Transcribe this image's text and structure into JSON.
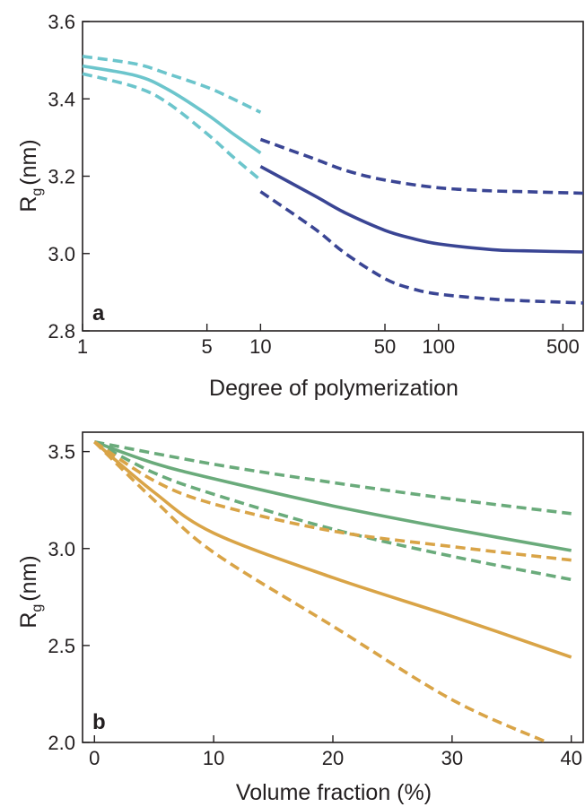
{
  "chart_data": [
    {
      "panel_label": "a",
      "type": "line",
      "xlabel": "Degree of polymerization",
      "ylabel": "R",
      "ylabel_sub": "g",
      "ylabel_unit": "(nm)",
      "xscale": "log",
      "xlim": [
        1,
        650
      ],
      "ylim": [
        2.8,
        3.6
      ],
      "x_ticks": [
        1,
        5,
        10,
        50,
        100,
        500
      ],
      "x_tick_labels": [
        "1",
        "5",
        "10",
        "50",
        "100",
        "500"
      ],
      "y_ticks": [
        2.8,
        3.0,
        3.2,
        3.4,
        3.6
      ],
      "y_tick_labels": [
        "2.8",
        "3.0",
        "3.2",
        "3.4",
        "3.6"
      ],
      "grid": false,
      "series": [
        {
          "color": "#6cc5cc",
          "style": "solid",
          "x": [
            1,
            2,
            3,
            5,
            7,
            10
          ],
          "y": [
            3.485,
            3.46,
            3.425,
            3.36,
            3.31,
            3.26
          ]
        },
        {
          "color": "#6cc5cc",
          "style": "dashed",
          "x": [
            1,
            2,
            3,
            5,
            7,
            10
          ],
          "y": [
            3.51,
            3.49,
            3.465,
            3.43,
            3.4,
            3.365
          ]
        },
        {
          "color": "#6cc5cc",
          "style": "dashed",
          "x": [
            1,
            2,
            3,
            5,
            7,
            10
          ],
          "y": [
            3.465,
            3.43,
            3.39,
            3.31,
            3.25,
            3.19
          ]
        },
        {
          "color": "#3a4594",
          "style": "solid",
          "x": [
            10,
            20,
            30,
            50,
            70,
            100,
            200,
            300,
            650
          ],
          "y": [
            3.225,
            3.15,
            3.105,
            3.06,
            3.04,
            3.025,
            3.01,
            3.007,
            3.004
          ]
        },
        {
          "color": "#3a4594",
          "style": "dashed",
          "x": [
            10,
            20,
            30,
            50,
            100,
            200,
            300,
            650
          ],
          "y": [
            3.295,
            3.245,
            3.215,
            3.19,
            3.17,
            3.162,
            3.16,
            3.156
          ]
        },
        {
          "color": "#3a4594",
          "style": "dashed",
          "x": [
            10,
            20,
            30,
            50,
            70,
            100,
            200,
            300,
            650
          ],
          "y": [
            3.16,
            3.065,
            3.0,
            2.935,
            2.91,
            2.895,
            2.882,
            2.878,
            2.872
          ]
        }
      ]
    },
    {
      "panel_label": "b",
      "type": "line",
      "xlabel": "Volume fraction (%)",
      "ylabel": "R",
      "ylabel_sub": "g",
      "ylabel_unit": "(nm)",
      "xlim": [
        -1,
        41
      ],
      "ylim": [
        2.0,
        3.6
      ],
      "x_ticks": [
        0,
        10,
        20,
        30,
        40
      ],
      "x_tick_labels": [
        "0",
        "10",
        "20",
        "30",
        "40"
      ],
      "y_ticks": [
        2.0,
        2.5,
        3.0,
        3.5
      ],
      "y_tick_labels": [
        "2.0",
        "2.5",
        "3.0",
        "3.5"
      ],
      "grid": false,
      "series": [
        {
          "color": "#6aab7b",
          "style": "solid",
          "x": [
            0,
            5,
            10,
            20,
            30,
            40
          ],
          "y": [
            3.55,
            3.44,
            3.36,
            3.22,
            3.1,
            2.99
          ]
        },
        {
          "color": "#6aab7b",
          "style": "dashed",
          "x": [
            0,
            10,
            20,
            30,
            40
          ],
          "y": [
            3.55,
            3.435,
            3.34,
            3.255,
            3.18
          ]
        },
        {
          "color": "#6aab7b",
          "style": "dashed",
          "x": [
            0,
            5,
            10,
            20,
            30,
            40
          ],
          "y": [
            3.55,
            3.39,
            3.28,
            3.1,
            2.96,
            2.84
          ]
        },
        {
          "color": "#d9a447",
          "style": "solid",
          "x": [
            0,
            5,
            10,
            20,
            30,
            40
          ],
          "y": [
            3.55,
            3.29,
            3.08,
            2.85,
            2.65,
            2.44
          ]
        },
        {
          "color": "#d9a447",
          "style": "dashed",
          "x": [
            0,
            5,
            10,
            20,
            30,
            40
          ],
          "y": [
            3.55,
            3.35,
            3.23,
            3.09,
            3.01,
            2.94
          ]
        },
        {
          "color": "#d9a447",
          "style": "dashed",
          "x": [
            0,
            5,
            10,
            20,
            30,
            38
          ],
          "y": [
            3.55,
            3.25,
            2.98,
            2.6,
            2.22,
            2.0
          ]
        }
      ]
    }
  ]
}
